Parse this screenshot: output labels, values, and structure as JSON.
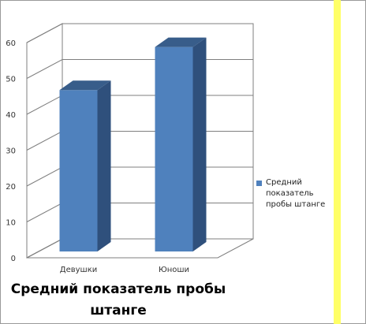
{
  "chart_data": {
    "type": "bar",
    "title": "Средний показатель пробы штанге",
    "categories": [
      "Девушки",
      "Юноши"
    ],
    "series": [
      {
        "name": "Средний показатель пробы штанге",
        "values": [
          45,
          57
        ]
      }
    ],
    "ylim": [
      0,
      60
    ],
    "yticks": [
      0,
      10,
      20,
      30,
      40,
      50,
      60
    ],
    "grid": true,
    "legend_position": "right",
    "colors": {
      "bar_front": "#4f81bd",
      "bar_side": "#2f507c",
      "bar_top": "#385d8a",
      "grid": "#7f7f7f",
      "axis_text": "#333333",
      "accent_stripe": "#ffff66"
    }
  }
}
